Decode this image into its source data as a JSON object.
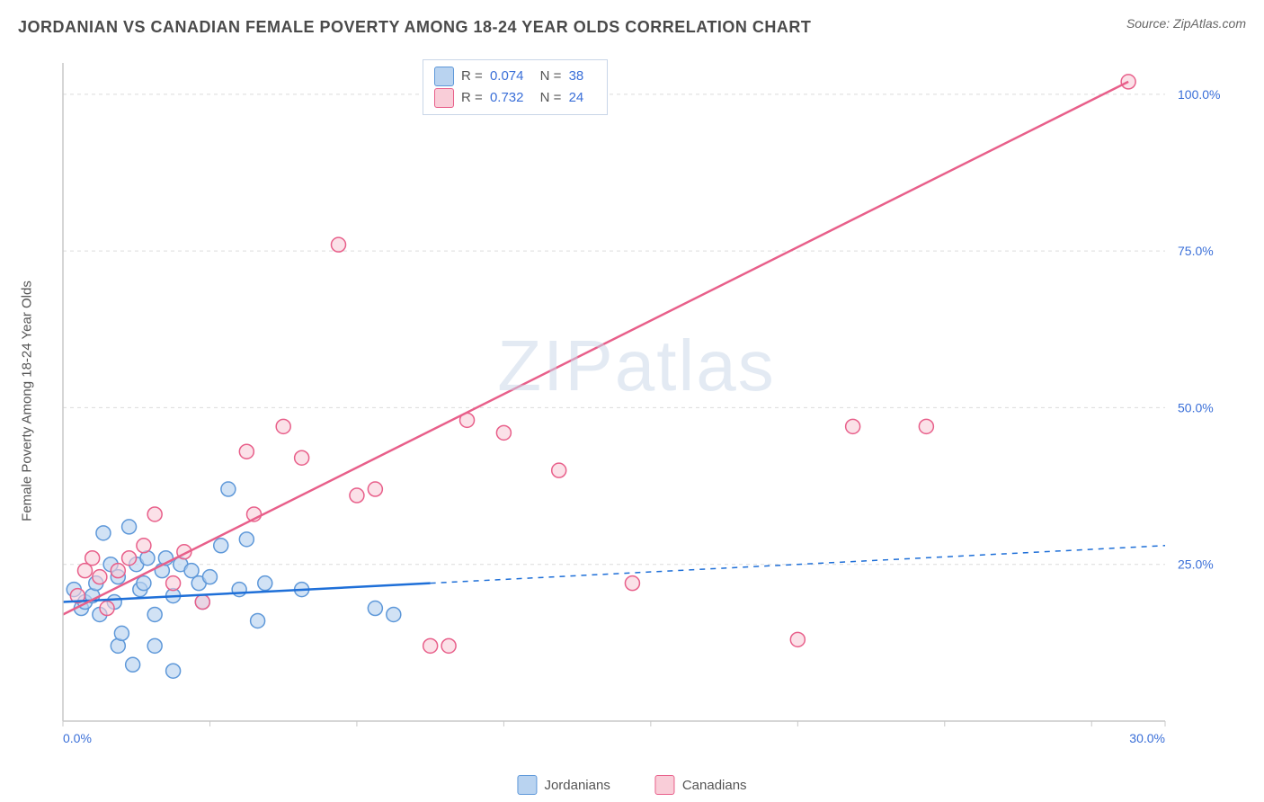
{
  "title": "JORDANIAN VS CANADIAN FEMALE POVERTY AMONG 18-24 YEAR OLDS CORRELATION CHART",
  "source": "Source: ZipAtlas.com",
  "y_axis_label": "Female Poverty Among 18-24 Year Olds",
  "watermark_a": "ZIP",
  "watermark_b": "atlas",
  "chart": {
    "type": "scatter",
    "xlim": [
      0,
      30
    ],
    "ylim": [
      0,
      105
    ],
    "x_ticks": [
      0,
      4,
      8,
      12,
      16,
      20,
      24,
      28,
      30
    ],
    "y_ticks": [
      25,
      50,
      75,
      100
    ],
    "x_tick_labels": {
      "0": "0.0%",
      "30": "30.0%"
    },
    "y_tick_labels": {
      "25": "25.0%",
      "50": "50.0%",
      "75": "75.0%",
      "100": "100.0%"
    },
    "grid_color": "#dcdcdc",
    "axis_color": "#c8c8c8",
    "background_color": "#ffffff",
    "label_color": "#3a6fd8",
    "series": [
      {
        "name": "Jordanians",
        "fill": "#b9d3f0",
        "stroke": "#5e98d9",
        "line_color": "#1e6fd8",
        "R": "0.074",
        "N": "38",
        "marker_radius": 8,
        "fill_opacity": 0.65,
        "regression": {
          "x1": 0,
          "y1": 19,
          "x2": 10,
          "y2": 22,
          "extend_x": 30,
          "extend_y": 28,
          "stroke_width": 2.5
        },
        "points": [
          [
            0.3,
            21
          ],
          [
            0.5,
            18
          ],
          [
            0.6,
            19
          ],
          [
            0.8,
            20
          ],
          [
            0.9,
            22
          ],
          [
            1.0,
            17
          ],
          [
            1.1,
            30
          ],
          [
            1.3,
            25
          ],
          [
            1.4,
            19
          ],
          [
            1.5,
            23
          ],
          [
            1.5,
            12
          ],
          [
            1.6,
            14
          ],
          [
            1.8,
            31
          ],
          [
            1.9,
            9
          ],
          [
            2.0,
            25
          ],
          [
            2.1,
            21
          ],
          [
            2.2,
            22
          ],
          [
            2.3,
            26
          ],
          [
            2.5,
            17
          ],
          [
            2.5,
            12
          ],
          [
            2.7,
            24
          ],
          [
            2.8,
            26
          ],
          [
            3.0,
            20
          ],
          [
            3.0,
            8
          ],
          [
            3.2,
            25
          ],
          [
            3.5,
            24
          ],
          [
            3.7,
            22
          ],
          [
            3.8,
            19
          ],
          [
            4.0,
            23
          ],
          [
            4.3,
            28
          ],
          [
            4.5,
            37
          ],
          [
            4.8,
            21
          ],
          [
            5.0,
            29
          ],
          [
            5.3,
            16
          ],
          [
            5.5,
            22
          ],
          [
            6.5,
            21
          ],
          [
            8.5,
            18
          ],
          [
            9.0,
            17
          ]
        ]
      },
      {
        "name": "Canadians",
        "fill": "#f9cdd8",
        "stroke": "#e85f8a",
        "line_color": "#e85f8a",
        "R": "0.732",
        "N": "24",
        "marker_radius": 8,
        "fill_opacity": 0.6,
        "regression": {
          "x1": 0,
          "y1": 17,
          "x2": 29,
          "y2": 102,
          "extend_x": 29,
          "extend_y": 102,
          "stroke_width": 2.5
        },
        "points": [
          [
            0.4,
            20
          ],
          [
            0.6,
            24
          ],
          [
            0.8,
            26
          ],
          [
            1.0,
            23
          ],
          [
            1.2,
            18
          ],
          [
            1.5,
            24
          ],
          [
            1.8,
            26
          ],
          [
            2.2,
            28
          ],
          [
            2.5,
            33
          ],
          [
            3.0,
            22
          ],
          [
            3.3,
            27
          ],
          [
            3.8,
            19
          ],
          [
            5.0,
            43
          ],
          [
            5.2,
            33
          ],
          [
            6.0,
            47
          ],
          [
            6.5,
            42
          ],
          [
            7.5,
            76
          ],
          [
            8.0,
            36
          ],
          [
            8.5,
            37
          ],
          [
            10.0,
            12
          ],
          [
            11.0,
            48
          ],
          [
            12.0,
            46
          ],
          [
            13.5,
            40
          ],
          [
            29.0,
            102
          ]
        ]
      }
    ],
    "extra_pink_low": [
      [
        10.5,
        12
      ],
      [
        15.5,
        22
      ],
      [
        20.0,
        13
      ],
      [
        21.5,
        47
      ],
      [
        23.5,
        47
      ]
    ]
  },
  "legend_top": {
    "r_label": "R =",
    "n_label": "N ="
  },
  "legend_bottom": [
    {
      "label": "Jordanians"
    },
    {
      "label": "Canadians"
    }
  ]
}
